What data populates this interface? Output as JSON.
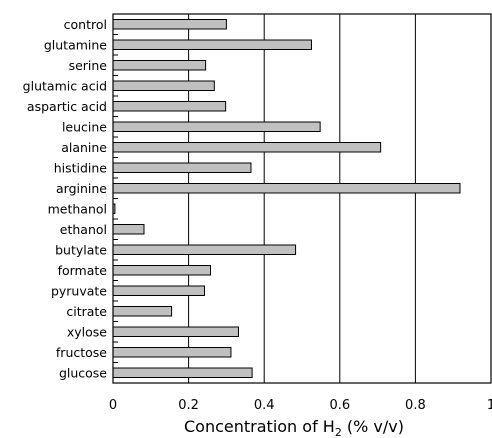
{
  "chart_data": {
    "type": "bar",
    "orientation": "horizontal",
    "categories": [
      "control",
      "glutamine",
      "serine",
      "glutamic acid",
      "aspartic acid",
      "leucine",
      "alanine",
      "histidine",
      "arginine",
      "methanol",
      "ethanol",
      "butylate",
      "formate",
      "pyruvate",
      "citrate",
      "xylose",
      "fructose",
      "glucose"
    ],
    "values": [
      0.3,
      0.525,
      0.245,
      0.268,
      0.298,
      0.548,
      0.708,
      0.365,
      0.918,
      0.005,
      0.082,
      0.483,
      0.258,
      0.242,
      0.155,
      0.332,
      0.312,
      0.368
    ],
    "xlabel_main": "Concentration of H",
    "xlabel_sub": "2",
    "xlabel_unit": " (% v/v)",
    "xlim": [
      0,
      1
    ],
    "xticks": [
      "0",
      "0.2",
      "0.4",
      "0.6",
      "0.8",
      "1"
    ],
    "grid": "vertical lines at major ticks",
    "legend": "none"
  },
  "colors": {
    "bar_fill": "#c0c0c0",
    "bar_stroke": "#000000",
    "background": "#ffffff"
  }
}
